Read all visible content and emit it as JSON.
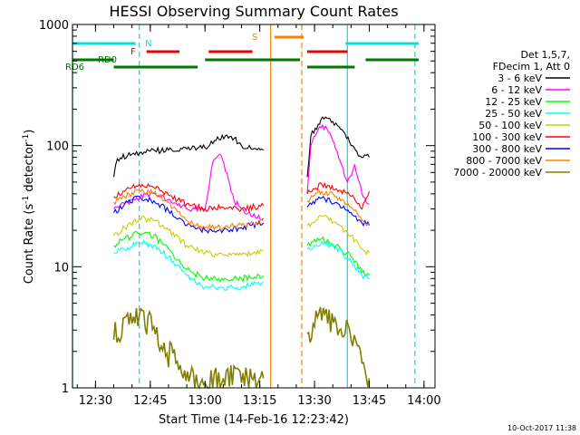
{
  "chart_data": {
    "type": "line",
    "title": "HESSI Observing Summary Count Rates",
    "xlabel": "Start Time (14-Feb-16 12:23:42)",
    "ylabel": "Count Rate (s",
    "ylabel_sup1": "-1",
    "ylabel_mid": " detector",
    "ylabel_sup2": "-1",
    "ylabel_end": ")",
    "yscale": "log",
    "xlim": [
      "12:23:42",
      "14:03:00"
    ],
    "ylim": [
      1,
      1000
    ],
    "x_ticks": [
      "12:30",
      "12:45",
      "13:00",
      "13:15",
      "13:30",
      "13:45",
      "14:00"
    ],
    "y_ticks": [
      "1",
      "10",
      "100",
      "1000"
    ],
    "legend_header": [
      "Det 1,5,7,",
      "FDecim 1, Att 0"
    ],
    "legend_placement": "right",
    "timestamp": "10-Oct-2017 11:38",
    "flags": [
      {
        "label": "N",
        "color": "#00e0e0",
        "segments": [
          [
            "12:23:42",
            "12:41:00"
          ],
          [
            "13:38:30",
            "13:58:30"
          ]
        ]
      },
      {
        "label": "F",
        "color": "#ee0000",
        "segments": [
          [
            "12:44:00",
            "12:53:00"
          ],
          [
            "13:01:00",
            "13:13:00"
          ],
          [
            "13:28:00",
            "13:39:00"
          ]
        ]
      },
      {
        "label": "S",
        "color": "#ff8000",
        "segments": [
          [
            "13:19:00",
            "13:27:00"
          ]
        ]
      },
      {
        "label": "RD0",
        "color": "#007700",
        "segments": [
          [
            "12:23:42",
            "12:35:00"
          ],
          [
            "13:00:00",
            "13:26:00"
          ],
          [
            "13:44:00",
            "13:58:30"
          ]
        ]
      },
      {
        "label": "RD6",
        "color": "#007700",
        "segments": [
          [
            "12:35:00",
            "12:58:00"
          ],
          [
            "13:28:00",
            "13:41:00"
          ]
        ]
      }
    ],
    "vlines": [
      {
        "x": "12:23:42",
        "color": "#00e0e0",
        "style": "solid"
      },
      {
        "x": "12:42:00",
        "color": "#00e0e0",
        "style": "dashed"
      },
      {
        "x": "13:18:00",
        "color": "#ff8000",
        "style": "solid"
      },
      {
        "x": "13:26:30",
        "color": "#ff8000",
        "style": "dashed"
      },
      {
        "x": "13:39:00",
        "color": "#00e0e0",
        "style": "solid"
      },
      {
        "x": "13:57:30",
        "color": "#00e0e0",
        "style": "dashed"
      }
    ],
    "segments": [
      [
        "12:35:00",
        "13:16:00"
      ],
      [
        "13:28:00",
        "13:45:00"
      ]
    ],
    "series": [
      {
        "name": "3 - 6 keV",
        "color": "#000000",
        "points": [
          [
            "12:35:00",
            55
          ],
          [
            "12:36:00",
            78
          ],
          [
            "12:40:00",
            85
          ],
          [
            "12:45:00",
            90
          ],
          [
            "12:50:00",
            92
          ],
          [
            "12:55:00",
            94
          ],
          [
            "13:00:00",
            96
          ],
          [
            "13:03:00",
            110
          ],
          [
            "13:06:00",
            122
          ],
          [
            "13:08:00",
            115
          ],
          [
            "13:10:00",
            100
          ],
          [
            "13:13:00",
            93
          ],
          [
            "13:16:00",
            92
          ],
          [
            "13:28:00",
            55
          ],
          [
            "13:29:00",
            120
          ],
          [
            "13:31:00",
            150
          ],
          [
            "13:33:00",
            172
          ],
          [
            "13:35:00",
            158
          ],
          [
            "13:38:00",
            130
          ],
          [
            "13:40:00",
            100
          ],
          [
            "13:42:00",
            82
          ],
          [
            "13:45:00",
            80
          ]
        ]
      },
      {
        "name": "6 - 12 keV",
        "color": "#ff00ff",
        "points": [
          [
            "12:35:00",
            30
          ],
          [
            "12:40:00",
            36
          ],
          [
            "12:45:00",
            40
          ],
          [
            "12:50:00",
            36
          ],
          [
            "12:55:00",
            30
          ],
          [
            "13:00:00",
            30
          ],
          [
            "13:02:00",
            70
          ],
          [
            "13:04:00",
            85
          ],
          [
            "13:06:00",
            60
          ],
          [
            "13:08:00",
            35
          ],
          [
            "13:10:00",
            30
          ],
          [
            "13:13:00",
            26
          ],
          [
            "13:16:00",
            25
          ],
          [
            "13:28:00",
            40
          ],
          [
            "13:29:00",
            100
          ],
          [
            "13:31:00",
            135
          ],
          [
            "13:33:00",
            145
          ],
          [
            "13:35:00",
            110
          ],
          [
            "13:37:00",
            75
          ],
          [
            "13:39:00",
            50
          ],
          [
            "13:41:00",
            70
          ],
          [
            "13:43:00",
            40
          ],
          [
            "13:45:00",
            33
          ]
        ]
      },
      {
        "name": "12 - 25 keV",
        "color": "#00ff00",
        "points": [
          [
            "12:35:00",
            15
          ],
          [
            "12:38:00",
            17
          ],
          [
            "12:42:00",
            19
          ],
          [
            "12:46:00",
            18
          ],
          [
            "12:50:00",
            14
          ],
          [
            "12:55:00",
            9.5
          ],
          [
            "13:00:00",
            8
          ],
          [
            "13:05:00",
            7.8
          ],
          [
            "13:10:00",
            8
          ],
          [
            "13:16:00",
            8.5
          ],
          [
            "13:28:00",
            15
          ],
          [
            "13:32:00",
            17
          ],
          [
            "13:36:00",
            15
          ],
          [
            "13:40:00",
            12
          ],
          [
            "13:43:00",
            9
          ],
          [
            "13:45:00",
            8.5
          ]
        ]
      },
      {
        "name": "25 - 50 keV",
        "color": "#00ffff",
        "points": [
          [
            "12:35:00",
            13
          ],
          [
            "12:38:00",
            14
          ],
          [
            "12:42:00",
            16
          ],
          [
            "12:46:00",
            15
          ],
          [
            "12:50:00",
            12
          ],
          [
            "12:55:00",
            8.5
          ],
          [
            "13:00:00",
            6.8
          ],
          [
            "13:05:00",
            6.7
          ],
          [
            "13:10:00",
            6.8
          ],
          [
            "13:16:00",
            7.5
          ],
          [
            "13:28:00",
            14
          ],
          [
            "13:32:00",
            16
          ],
          [
            "13:36:00",
            14.5
          ],
          [
            "13:40:00",
            11
          ],
          [
            "13:43:00",
            8.5
          ],
          [
            "13:45:00",
            8
          ]
        ]
      },
      {
        "name": "50 - 100 keV",
        "color": "#cccc00",
        "points": [
          [
            "12:35:00",
            18
          ],
          [
            "12:38:00",
            21
          ],
          [
            "12:42:00",
            25
          ],
          [
            "12:46:00",
            24
          ],
          [
            "12:50:00",
            20
          ],
          [
            "12:55:00",
            15
          ],
          [
            "13:00:00",
            13
          ],
          [
            "13:05:00",
            12.5
          ],
          [
            "13:10:00",
            12.5
          ],
          [
            "13:16:00",
            13.5
          ],
          [
            "13:28:00",
            22
          ],
          [
            "13:32:00",
            26
          ],
          [
            "13:36:00",
            23
          ],
          [
            "13:40:00",
            18
          ],
          [
            "13:43:00",
            14
          ],
          [
            "13:45:00",
            13
          ]
        ]
      },
      {
        "name": "100 - 300 keV",
        "color": "#ff0000",
        "points": [
          [
            "12:35:00",
            38
          ],
          [
            "12:38:00",
            42
          ],
          [
            "12:42:00",
            48
          ],
          [
            "12:46:00",
            45
          ],
          [
            "12:50:00",
            39
          ],
          [
            "12:55:00",
            33
          ],
          [
            "13:00:00",
            30
          ],
          [
            "13:05:00",
            31
          ],
          [
            "13:10:00",
            30
          ],
          [
            "13:16:00",
            32
          ],
          [
            "13:28:00",
            40
          ],
          [
            "13:32:00",
            48
          ],
          [
            "13:36:00",
            44
          ],
          [
            "13:40:00",
            38
          ],
          [
            "13:43:00",
            30
          ],
          [
            "13:45:00",
            42
          ]
        ]
      },
      {
        "name": "300 - 800 keV",
        "color": "#0000ff",
        "points": [
          [
            "12:35:00",
            28
          ],
          [
            "12:38:00",
            33
          ],
          [
            "12:42:00",
            38
          ],
          [
            "12:46:00",
            35
          ],
          [
            "12:50:00",
            29
          ],
          [
            "12:55:00",
            22
          ],
          [
            "13:00:00",
            20
          ],
          [
            "13:05:00",
            20
          ],
          [
            "13:10:00",
            21
          ],
          [
            "13:16:00",
            23
          ],
          [
            "13:28:00",
            31
          ],
          [
            "13:32:00",
            37
          ],
          [
            "13:36:00",
            34
          ],
          [
            "13:40:00",
            28
          ],
          [
            "13:43:00",
            23
          ],
          [
            "13:45:00",
            22
          ]
        ]
      },
      {
        "name": "800 - 7000 keV",
        "color": "#ff8000",
        "points": [
          [
            "12:35:00",
            34
          ],
          [
            "12:38:00",
            38
          ],
          [
            "12:42:00",
            43
          ],
          [
            "12:46:00",
            41
          ],
          [
            "12:50:00",
            34
          ],
          [
            "12:55:00",
            24
          ],
          [
            "13:00:00",
            21
          ],
          [
            "13:05:00",
            21
          ],
          [
            "13:10:00",
            22
          ],
          [
            "13:16:00",
            24
          ],
          [
            "13:28:00",
            35
          ],
          [
            "13:32:00",
            42
          ],
          [
            "13:36:00",
            38
          ],
          [
            "13:40:00",
            31
          ],
          [
            "13:43:00",
            24
          ],
          [
            "13:45:00",
            23
          ]
        ]
      },
      {
        "name": "7000 - 20000 keV",
        "color": "#808000",
        "points": [
          [
            "12:35:00",
            2.5
          ],
          [
            "12:38:00",
            3.8
          ],
          [
            "12:42:00",
            4
          ],
          [
            "12:46:00",
            3.2
          ],
          [
            "12:48:00",
            2.2
          ],
          [
            "12:52:00",
            1.6
          ],
          [
            "12:56:00",
            1.3
          ],
          [
            "13:00:00",
            1.1
          ],
          [
            "13:05:00",
            1.2
          ],
          [
            "13:10:00",
            1.1
          ],
          [
            "13:16:00",
            1.2
          ],
          [
            "13:28:00",
            2.8
          ],
          [
            "13:32:00",
            3.6
          ],
          [
            "13:36:00",
            3.4
          ],
          [
            "13:40:00",
            2.5
          ],
          [
            "13:43:00",
            1.6
          ],
          [
            "13:45:00",
            1.2
          ]
        ]
      }
    ]
  }
}
